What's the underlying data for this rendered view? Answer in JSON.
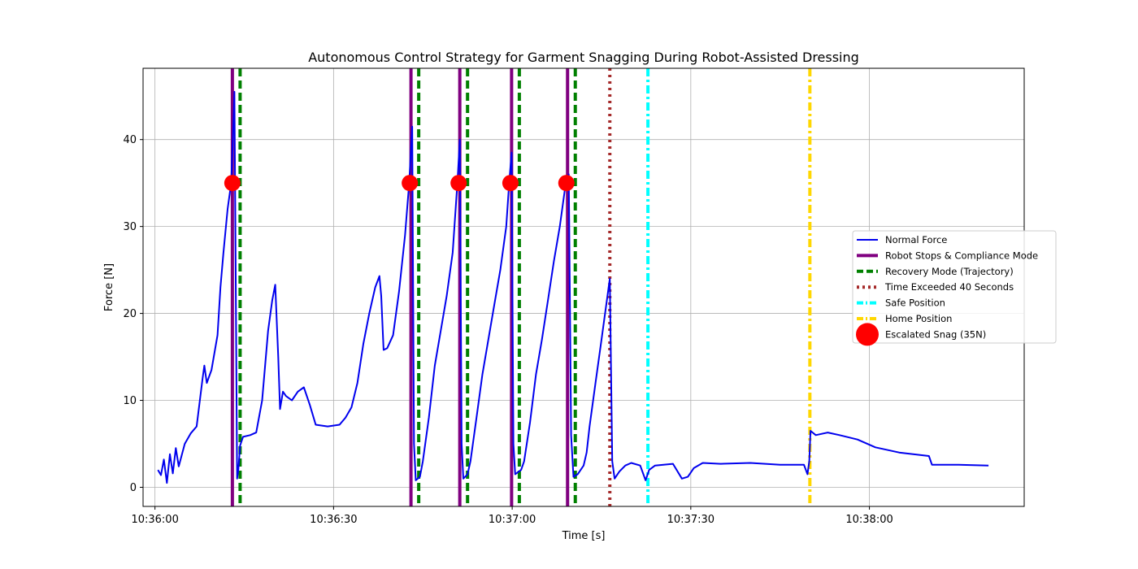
{
  "chart_data": {
    "type": "line",
    "title": "Autonomous Control Strategy for Garment Snagging During Robot-Assisted Dressing",
    "xlabel": "Time [s]",
    "ylabel": "Force [N]",
    "x_unit": "time of day (HH:MM:SS)",
    "xlim": [
      "10:35:58",
      "10:38:26"
    ],
    "ylim": [
      -2.2,
      48.2
    ],
    "x_ticks": [
      "10:36:00",
      "10:36:30",
      "10:37:00",
      "10:37:30",
      "10:38:00"
    ],
    "y_ticks": [
      0,
      10,
      20,
      30,
      40
    ],
    "grid": true,
    "legend_position": "center-right",
    "colors": {
      "normal_force": "#0000ee",
      "stop": "#800080",
      "recovery": "#008000",
      "time_exceeded": "#a52a2a",
      "safe": "#00ffff",
      "home": "#ffd700",
      "snag": "#ff0000",
      "grid": "#b0b0b0"
    },
    "series": [
      {
        "name": "Normal Force",
        "style": "line",
        "color": "#0000ee",
        "points": [
          [
            "10:36:00.5",
            2.0
          ],
          [
            "10:36:01",
            1.4
          ],
          [
            "10:36:01.5",
            3.2
          ],
          [
            "10:36:02",
            0.5
          ],
          [
            "10:36:02.5",
            3.8
          ],
          [
            "10:36:03",
            1.6
          ],
          [
            "10:36:03.5",
            4.5
          ],
          [
            "10:36:04",
            2.4
          ],
          [
            "10:36:05",
            5.0
          ],
          [
            "10:36:06",
            6.2
          ],
          [
            "10:36:07",
            7.0
          ],
          [
            "10:36:08",
            12.5
          ],
          [
            "10:36:08.3",
            14.0
          ],
          [
            "10:36:08.7",
            12.0
          ],
          [
            "10:36:09.5",
            13.5
          ],
          [
            "10:36:10",
            15.5
          ],
          [
            "10:36:10.5",
            17.5
          ],
          [
            "10:36:11",
            23.0
          ],
          [
            "10:36:11.5",
            27.0
          ],
          [
            "10:36:12.2",
            32.0
          ],
          [
            "10:36:12.8",
            35.0
          ],
          [
            "10:36:13.1",
            40.5
          ],
          [
            "10:36:13.35",
            45.5
          ],
          [
            "10:36:13.6",
            20.0
          ],
          [
            "10:36:13.8",
            1.0
          ],
          [
            "10:36:14",
            2.0
          ],
          [
            "10:36:14.3",
            4.8
          ],
          [
            "10:36:14.8",
            5.8
          ],
          [
            "10:36:16",
            6.0
          ],
          [
            "10:36:17",
            6.3
          ],
          [
            "10:36:18",
            10.0
          ],
          [
            "10:36:19",
            18.0
          ],
          [
            "10:36:19.7",
            21.5
          ],
          [
            "10:36:20.2",
            23.3
          ],
          [
            "10:36:20.7",
            15.0
          ],
          [
            "10:36:21",
            9.0
          ],
          [
            "10:36:21.5",
            11.0
          ],
          [
            "10:36:22",
            10.5
          ],
          [
            "10:36:23",
            10.0
          ],
          [
            "10:36:24",
            11.0
          ],
          [
            "10:36:25",
            11.5
          ],
          [
            "10:36:26",
            9.5
          ],
          [
            "10:36:27",
            7.2
          ],
          [
            "10:36:29",
            7.0
          ],
          [
            "10:36:31",
            7.2
          ],
          [
            "10:36:32",
            8.0
          ],
          [
            "10:36:33",
            9.2
          ],
          [
            "10:36:34",
            12.0
          ],
          [
            "10:36:35",
            16.5
          ],
          [
            "10:36:36",
            20.0
          ],
          [
            "10:36:37",
            23.0
          ],
          [
            "10:36:37.7",
            24.3
          ],
          [
            "10:36:38",
            22.0
          ],
          [
            "10:36:38.4",
            15.8
          ],
          [
            "10:36:39",
            16.0
          ],
          [
            "10:36:40",
            17.5
          ],
          [
            "10:36:41",
            22.5
          ],
          [
            "10:36:42",
            29.0
          ],
          [
            "10:36:42.7",
            35.0
          ],
          [
            "10:36:43.2",
            41.5
          ],
          [
            "10:36:43.5",
            5.0
          ],
          [
            "10:36:43.8",
            0.8
          ],
          [
            "10:36:44.5",
            1.2
          ],
          [
            "10:36:45",
            3.0
          ],
          [
            "10:36:46",
            8.0
          ],
          [
            "10:36:47",
            14.0
          ],
          [
            "10:36:48",
            18.0
          ],
          [
            "10:36:49",
            22.0
          ],
          [
            "10:36:50",
            27.0
          ],
          [
            "10:36:50.8",
            35.0
          ],
          [
            "10:36:51.2",
            40.0
          ],
          [
            "10:36:51.5",
            5.0
          ],
          [
            "10:36:51.8",
            1.0
          ],
          [
            "10:36:52.5",
            1.5
          ],
          [
            "10:36:53",
            3.0
          ],
          [
            "10:36:54",
            8.0
          ],
          [
            "10:36:55",
            13.0
          ],
          [
            "10:36:56",
            17.0
          ],
          [
            "10:36:57",
            21.0
          ],
          [
            "10:36:58",
            25.0
          ],
          [
            "10:36:59",
            30.0
          ],
          [
            "10:36:59.5",
            35.0
          ],
          [
            "10:36:59.9",
            38.5
          ],
          [
            "10:37:00.2",
            5.0
          ],
          [
            "10:37:00.5",
            1.5
          ],
          [
            "10:37:01.5",
            2.0
          ],
          [
            "10:37:02",
            3.0
          ],
          [
            "10:37:03",
            7.5
          ],
          [
            "10:37:04",
            13.0
          ],
          [
            "10:37:05",
            17.0
          ],
          [
            "10:37:06",
            21.5
          ],
          [
            "10:37:07",
            26.0
          ],
          [
            "10:37:08",
            30.0
          ],
          [
            "10:37:09",
            35.0
          ],
          [
            "10:37:09.5",
            36.0
          ],
          [
            "10:37:09.9",
            6.0
          ],
          [
            "10:37:10.3",
            1.2
          ],
          [
            "10:37:11",
            1.5
          ],
          [
            "10:37:12",
            2.5
          ],
          [
            "10:37:12.5",
            4.0
          ],
          [
            "10:37:13",
            7.0
          ],
          [
            "10:37:14",
            12.0
          ],
          [
            "10:37:15",
            17.0
          ],
          [
            "10:37:16",
            22.0
          ],
          [
            "10:37:16.4",
            24.0
          ],
          [
            "10:37:16.8",
            3.0
          ],
          [
            "10:37:17.2",
            1.0
          ],
          [
            "10:37:18",
            1.8
          ],
          [
            "10:37:19",
            2.5
          ],
          [
            "10:37:20",
            2.8
          ],
          [
            "10:37:21.5",
            2.5
          ],
          [
            "10:37:22.4",
            0.8
          ],
          [
            "10:37:23",
            2.0
          ],
          [
            "10:37:24",
            2.5
          ],
          [
            "10:37:27",
            2.7
          ],
          [
            "10:37:28.5",
            1.0
          ],
          [
            "10:37:29.5",
            1.2
          ],
          [
            "10:37:30.5",
            2.2
          ],
          [
            "10:37:32",
            2.8
          ],
          [
            "10:37:35",
            2.7
          ],
          [
            "10:37:40",
            2.8
          ],
          [
            "10:37:45",
            2.6
          ],
          [
            "10:37:49",
            2.6
          ],
          [
            "10:37:49.6",
            1.5
          ],
          [
            "10:37:49.9",
            3.0
          ],
          [
            "10:37:50.1",
            6.5
          ],
          [
            "10:37:51",
            6.0
          ],
          [
            "10:37:53",
            6.3
          ],
          [
            "10:37:55",
            6.0
          ],
          [
            "10:37:58",
            5.5
          ],
          [
            "10:38:01",
            4.6
          ],
          [
            "10:38:05",
            4.0
          ],
          [
            "10:38:10",
            3.6
          ],
          [
            "10:38:10.5",
            2.6
          ],
          [
            "10:38:15",
            2.6
          ],
          [
            "10:38:20",
            2.5
          ]
        ]
      },
      {
        "name": "Robot Stops & Compliance Mode",
        "style": "vline-solid",
        "color": "#800080",
        "x": [
          "10:36:13",
          "10:36:43",
          "10:36:51.2",
          "10:36:59.9",
          "10:37:09.3"
        ]
      },
      {
        "name": "Recovery Mode (Trajectory)",
        "style": "vline-dashed",
        "color": "#008000",
        "x": [
          "10:36:14.3",
          "10:36:44.3",
          "10:36:52.5",
          "10:37:01.2",
          "10:37:10.6"
        ]
      },
      {
        "name": "Time Exceeded 40 Seconds",
        "style": "vline-dotted",
        "color": "#a52a2a",
        "x": [
          "10:37:16.4"
        ]
      },
      {
        "name": "Safe Position",
        "style": "vline-dashdot",
        "color": "#00ffff",
        "x": [
          "10:37:22.8"
        ]
      },
      {
        "name": "Home Position",
        "style": "vline-dashdot",
        "color": "#ffd700",
        "x": [
          "10:37:50"
        ]
      },
      {
        "name": "Escalated Snag (35N)",
        "style": "marker",
        "color": "#ff0000",
        "points": [
          [
            "10:36:13",
            35
          ],
          [
            "10:36:42.8",
            35
          ],
          [
            "10:36:51",
            35
          ],
          [
            "10:36:59.7",
            35
          ],
          [
            "10:37:09.1",
            35
          ]
        ]
      }
    ]
  }
}
